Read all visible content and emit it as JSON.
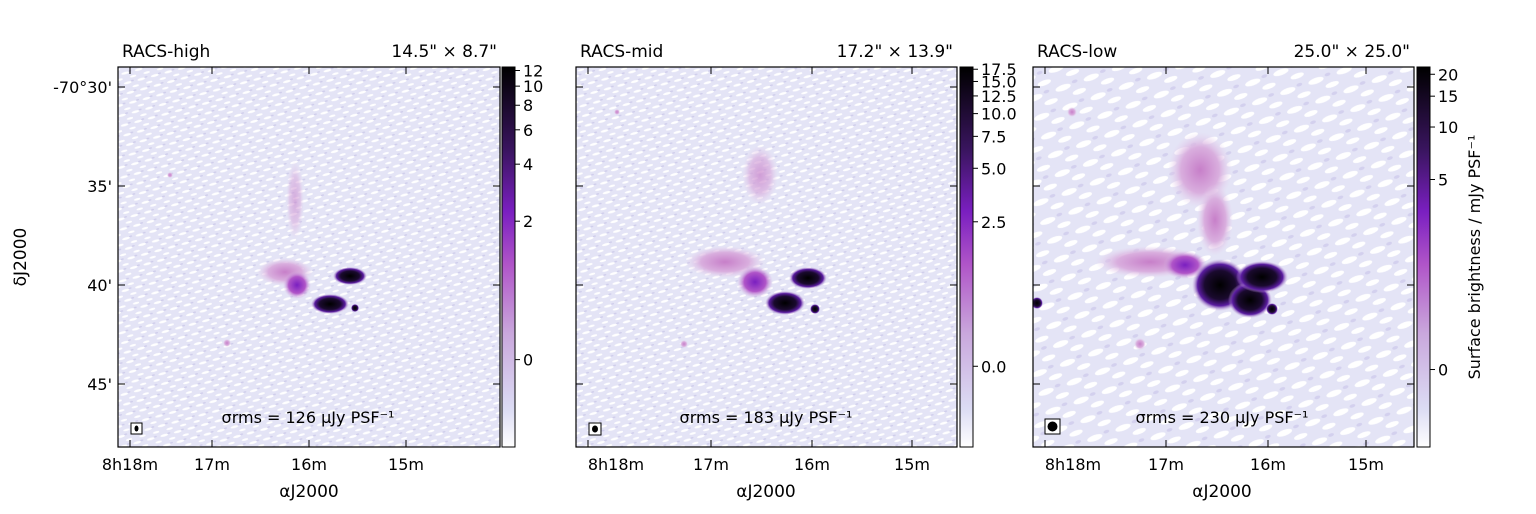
{
  "figure": {
    "y_axis_label": "δJ2000",
    "colorbar_label": "Surface brightness / mJy PSF⁻¹"
  },
  "chart_data": [
    {
      "type": "heatmap",
      "title": "RACS-high",
      "beam": "14.5\" × 8.7\"",
      "rms_label": "σrms = 126 μJy PSF⁻¹",
      "xlabel": "αJ2000",
      "xticks": [
        "8h18m",
        "17m",
        "16m",
        "15m"
      ],
      "ylabel": "δJ2000",
      "yticks": [
        "-70°30'",
        "35'",
        "40'",
        "45'"
      ],
      "colorbar": {
        "ticks": [
          "0",
          "2",
          "4",
          "6",
          "8",
          "10",
          "12"
        ],
        "range": [
          -1,
          12.5
        ]
      }
    },
    {
      "type": "heatmap",
      "title": "RACS-mid",
      "beam": "17.2\" × 13.9\"",
      "rms_label": "σrms = 183 μJy PSF⁻¹",
      "xlabel": "αJ2000",
      "xticks": [
        "8h18m",
        "17m",
        "16m",
        "15m"
      ],
      "colorbar": {
        "ticks": [
          "0.0",
          "2.5",
          "5.0",
          "7.5",
          "10.0",
          "12.5",
          "15.0",
          "17.5"
        ],
        "range": [
          -1,
          18
        ]
      }
    },
    {
      "type": "heatmap",
      "title": "RACS-low",
      "beam": "25.0\" × 25.0\"",
      "rms_label": "σrms = 230 μJy PSF⁻¹",
      "xlabel": "αJ2000",
      "xticks": [
        "8h18m",
        "17m",
        "16m",
        "15m"
      ],
      "colorbar": {
        "ticks": [
          "0",
          "5",
          "10",
          "15",
          "20"
        ],
        "range": [
          -1,
          22
        ],
        "label": "Surface brightness / mJy PSF⁻¹"
      }
    }
  ]
}
